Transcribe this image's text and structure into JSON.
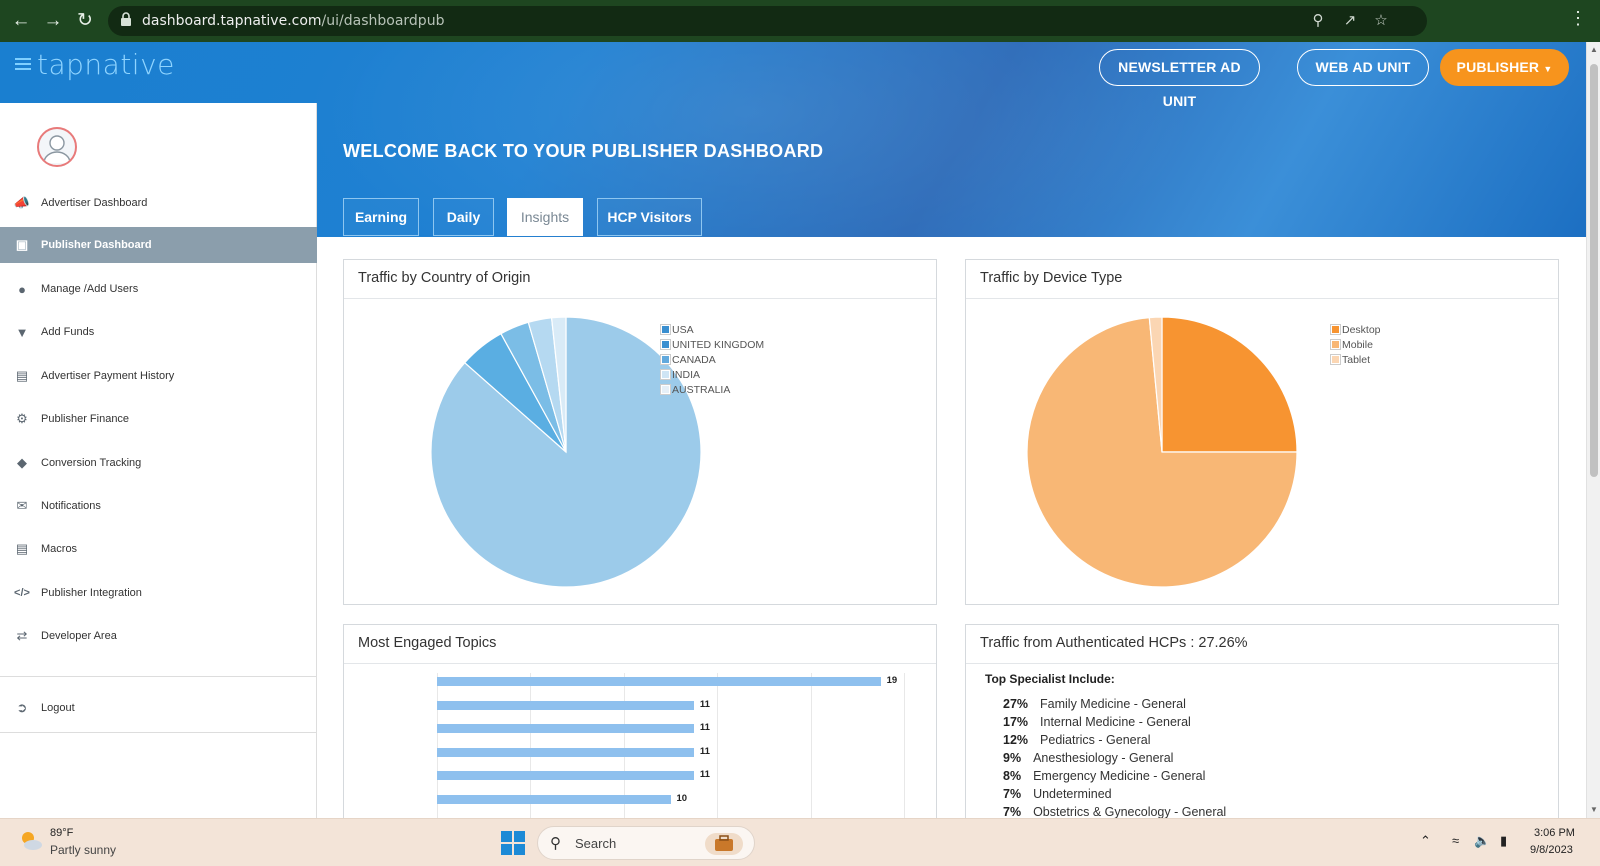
{
  "browser": {
    "url_domain": "dashboard.tapnative.com",
    "url_path": "/ui/dashboardpub"
  },
  "header": {
    "logo_text": "tapnative",
    "newsletter_button": "NEWSLETTER AD UNIT",
    "web_ad_button": "WEB AD UNIT",
    "publisher_button": "PUBLISHER",
    "welcome": "WELCOME BACK TO YOUR PUBLISHER DASHBOARD",
    "tabs": [
      {
        "label": "Earning",
        "active": false
      },
      {
        "label": "Daily",
        "active": false
      },
      {
        "label": "Insights",
        "active": true
      },
      {
        "label": "HCP Visitors",
        "active": false
      }
    ]
  },
  "sidebar": {
    "items": [
      {
        "label": "Advertiser Dashboard",
        "icon": "megaphone-icon"
      },
      {
        "label": "Publisher Dashboard",
        "icon": "book-icon",
        "active": true
      },
      {
        "label": "Manage /Add Users",
        "icon": "user-icon"
      },
      {
        "label": "Add Funds",
        "icon": "funds-icon"
      },
      {
        "label": "Advertiser Payment History",
        "icon": "payment-card-icon"
      },
      {
        "label": "Publisher Finance",
        "icon": "gear-icon"
      },
      {
        "label": "Conversion Tracking",
        "icon": "tag-icon"
      },
      {
        "label": "Notifications",
        "icon": "envelope-icon"
      },
      {
        "label": "Macros",
        "icon": "laptop-icon"
      },
      {
        "label": "Publisher Integration",
        "icon": "code-icon"
      },
      {
        "label": "Developer Area",
        "icon": "shuffle-icon"
      }
    ],
    "logout": "Logout"
  },
  "panels": {
    "country_title": "Traffic by Country of Origin",
    "device_title": "Traffic by Device Type",
    "topics_title": "Most Engaged Topics",
    "hcp_title": "Traffic from Authenticated HCPs : 27.26%"
  },
  "chart_data": [
    {
      "type": "pie",
      "title": "Traffic by Country of Origin",
      "categories": [
        "USA",
        "UNITED KINGDOM",
        "CANADA",
        "INDIA",
        "AUSTRALIA"
      ],
      "values": [
        86.5,
        5.5,
        3.5,
        2.8,
        1.7
      ],
      "colors": [
        "#9ccbea",
        "#5aaee2",
        "#7bbde6",
        "#b5d9f1",
        "#d9ebf7"
      ],
      "legend_colors": [
        "#3a8fd0",
        "#3a8fd0",
        "#62a9dd",
        "#cfe5f5",
        "#e6f0f8"
      ],
      "legend": "top-right"
    },
    {
      "type": "pie",
      "title": "Traffic by Device Type",
      "categories": [
        "Desktop",
        "Mobile",
        "Tablet"
      ],
      "values": [
        25,
        73.5,
        1.5
      ],
      "colors": [
        "#f79431",
        "#f8b775",
        "#fbd6b3"
      ],
      "legend": "top-right"
    },
    {
      "type": "bar",
      "title": "Most Engaged Topics",
      "orientation": "horizontal",
      "values": [
        19,
        11,
        11,
        11,
        11,
        10
      ],
      "xlim": [
        0,
        20
      ],
      "color": "#8ec0ee"
    }
  ],
  "hcp": {
    "top_specialist_label": "Top Specialist Include:",
    "specialists": [
      {
        "pct": "27%",
        "name": "Family Medicine - General"
      },
      {
        "pct": "17%",
        "name": "Internal Medicine - General"
      },
      {
        "pct": "12%",
        "name": "Pediatrics - General"
      },
      {
        "pct": "9%",
        "name": "Anesthesiology - General"
      },
      {
        "pct": "8%",
        "name": "Emergency Medicine - General"
      },
      {
        "pct": "7%",
        "name": "Undetermined"
      },
      {
        "pct": "7%",
        "name": "Obstetrics & Gynecology - General"
      }
    ]
  },
  "taskbar": {
    "temp": "89°F",
    "weather": "Partly sunny",
    "search_label": "Search",
    "time": "3:06 PM",
    "date": "9/8/2023"
  }
}
